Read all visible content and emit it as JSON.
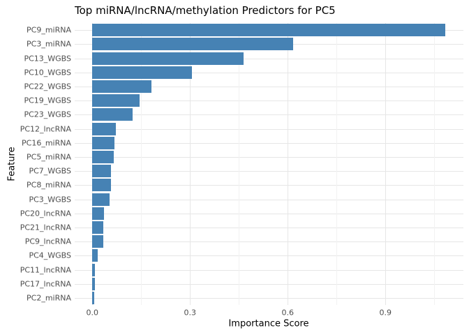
{
  "chart_data": {
    "type": "bar",
    "orientation": "horizontal",
    "title": "Top miRNA/lncRNA/methylation Predictors for PC5",
    "xlabel": "Importance Score",
    "ylabel": "Feature",
    "categories": [
      "PC9_miRNA",
      "PC3_miRNA",
      "PC13_WGBS",
      "PC10_WGBS",
      "PC22_WGBS",
      "PC19_WGBS",
      "PC23_WGBS",
      "PC12_lncRNA",
      "PC16_miRNA",
      "PC5_miRNA",
      "PC7_WGBS",
      "PC8_miRNA",
      "PC3_WGBS",
      "PC20_lncRNA",
      "PC21_lncRNA",
      "PC9_lncRNA",
      "PC4_WGBS",
      "PC11_lncRNA",
      "PC17_lncRNA",
      "PC2_miRNA"
    ],
    "values": [
      1.084,
      0.617,
      0.465,
      0.306,
      0.181,
      0.146,
      0.124,
      0.073,
      0.068,
      0.065,
      0.058,
      0.057,
      0.054,
      0.036,
      0.034,
      0.033,
      0.016,
      0.009,
      0.008,
      0.006
    ],
    "x_ticks": [
      0.0,
      0.3,
      0.6,
      0.9
    ],
    "x_tick_labels": [
      "0.0",
      "0.3",
      "0.6",
      "0.9"
    ],
    "x_minor_ticks": [
      0.15,
      0.45,
      0.75,
      1.05
    ],
    "xlim": [
      -0.054,
      1.138
    ],
    "grid": "on",
    "legend": "none",
    "colors": {
      "bar": "#4682B4",
      "grid_major": "#E6E6E6",
      "grid_minor": "#F2F2F2",
      "axis_text": "#4d4d4d",
      "title_text": "#000000",
      "background": "#FFFFFF"
    }
  }
}
